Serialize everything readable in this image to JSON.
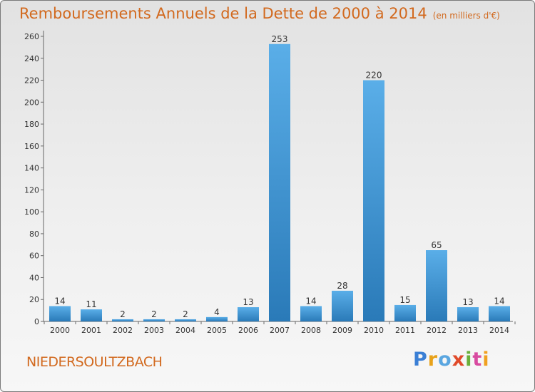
{
  "header": {
    "title": "Remboursements Annuels de la Dette de 2000 à 2014",
    "unit": "(en milliers d'€)"
  },
  "footer": {
    "commune": "NIEDERSOULTZBACH",
    "logo": "Proxiti"
  },
  "colors": {
    "accent": "#d2691e",
    "bar_top": "#5aaee8",
    "bar_bottom": "#2a7ab8"
  },
  "chart_data": {
    "type": "bar",
    "title": "Remboursements Annuels de la Dette de 2000 à 2014",
    "subtitle": "(en milliers d'€)",
    "xlabel": "",
    "ylabel": "",
    "categories": [
      "2000",
      "2001",
      "2002",
      "2003",
      "2004",
      "2005",
      "2006",
      "2007",
      "2008",
      "2009",
      "2010",
      "2011",
      "2012",
      "2013",
      "2014"
    ],
    "values": [
      14,
      11,
      2,
      2,
      2,
      4,
      13,
      253,
      14,
      28,
      220,
      15,
      65,
      13,
      14
    ],
    "ylim": [
      0,
      260
    ],
    "yticks": [
      0,
      20,
      40,
      60,
      80,
      100,
      120,
      140,
      160,
      180,
      200,
      220,
      240,
      260
    ],
    "grid": false,
    "legend": "none"
  }
}
